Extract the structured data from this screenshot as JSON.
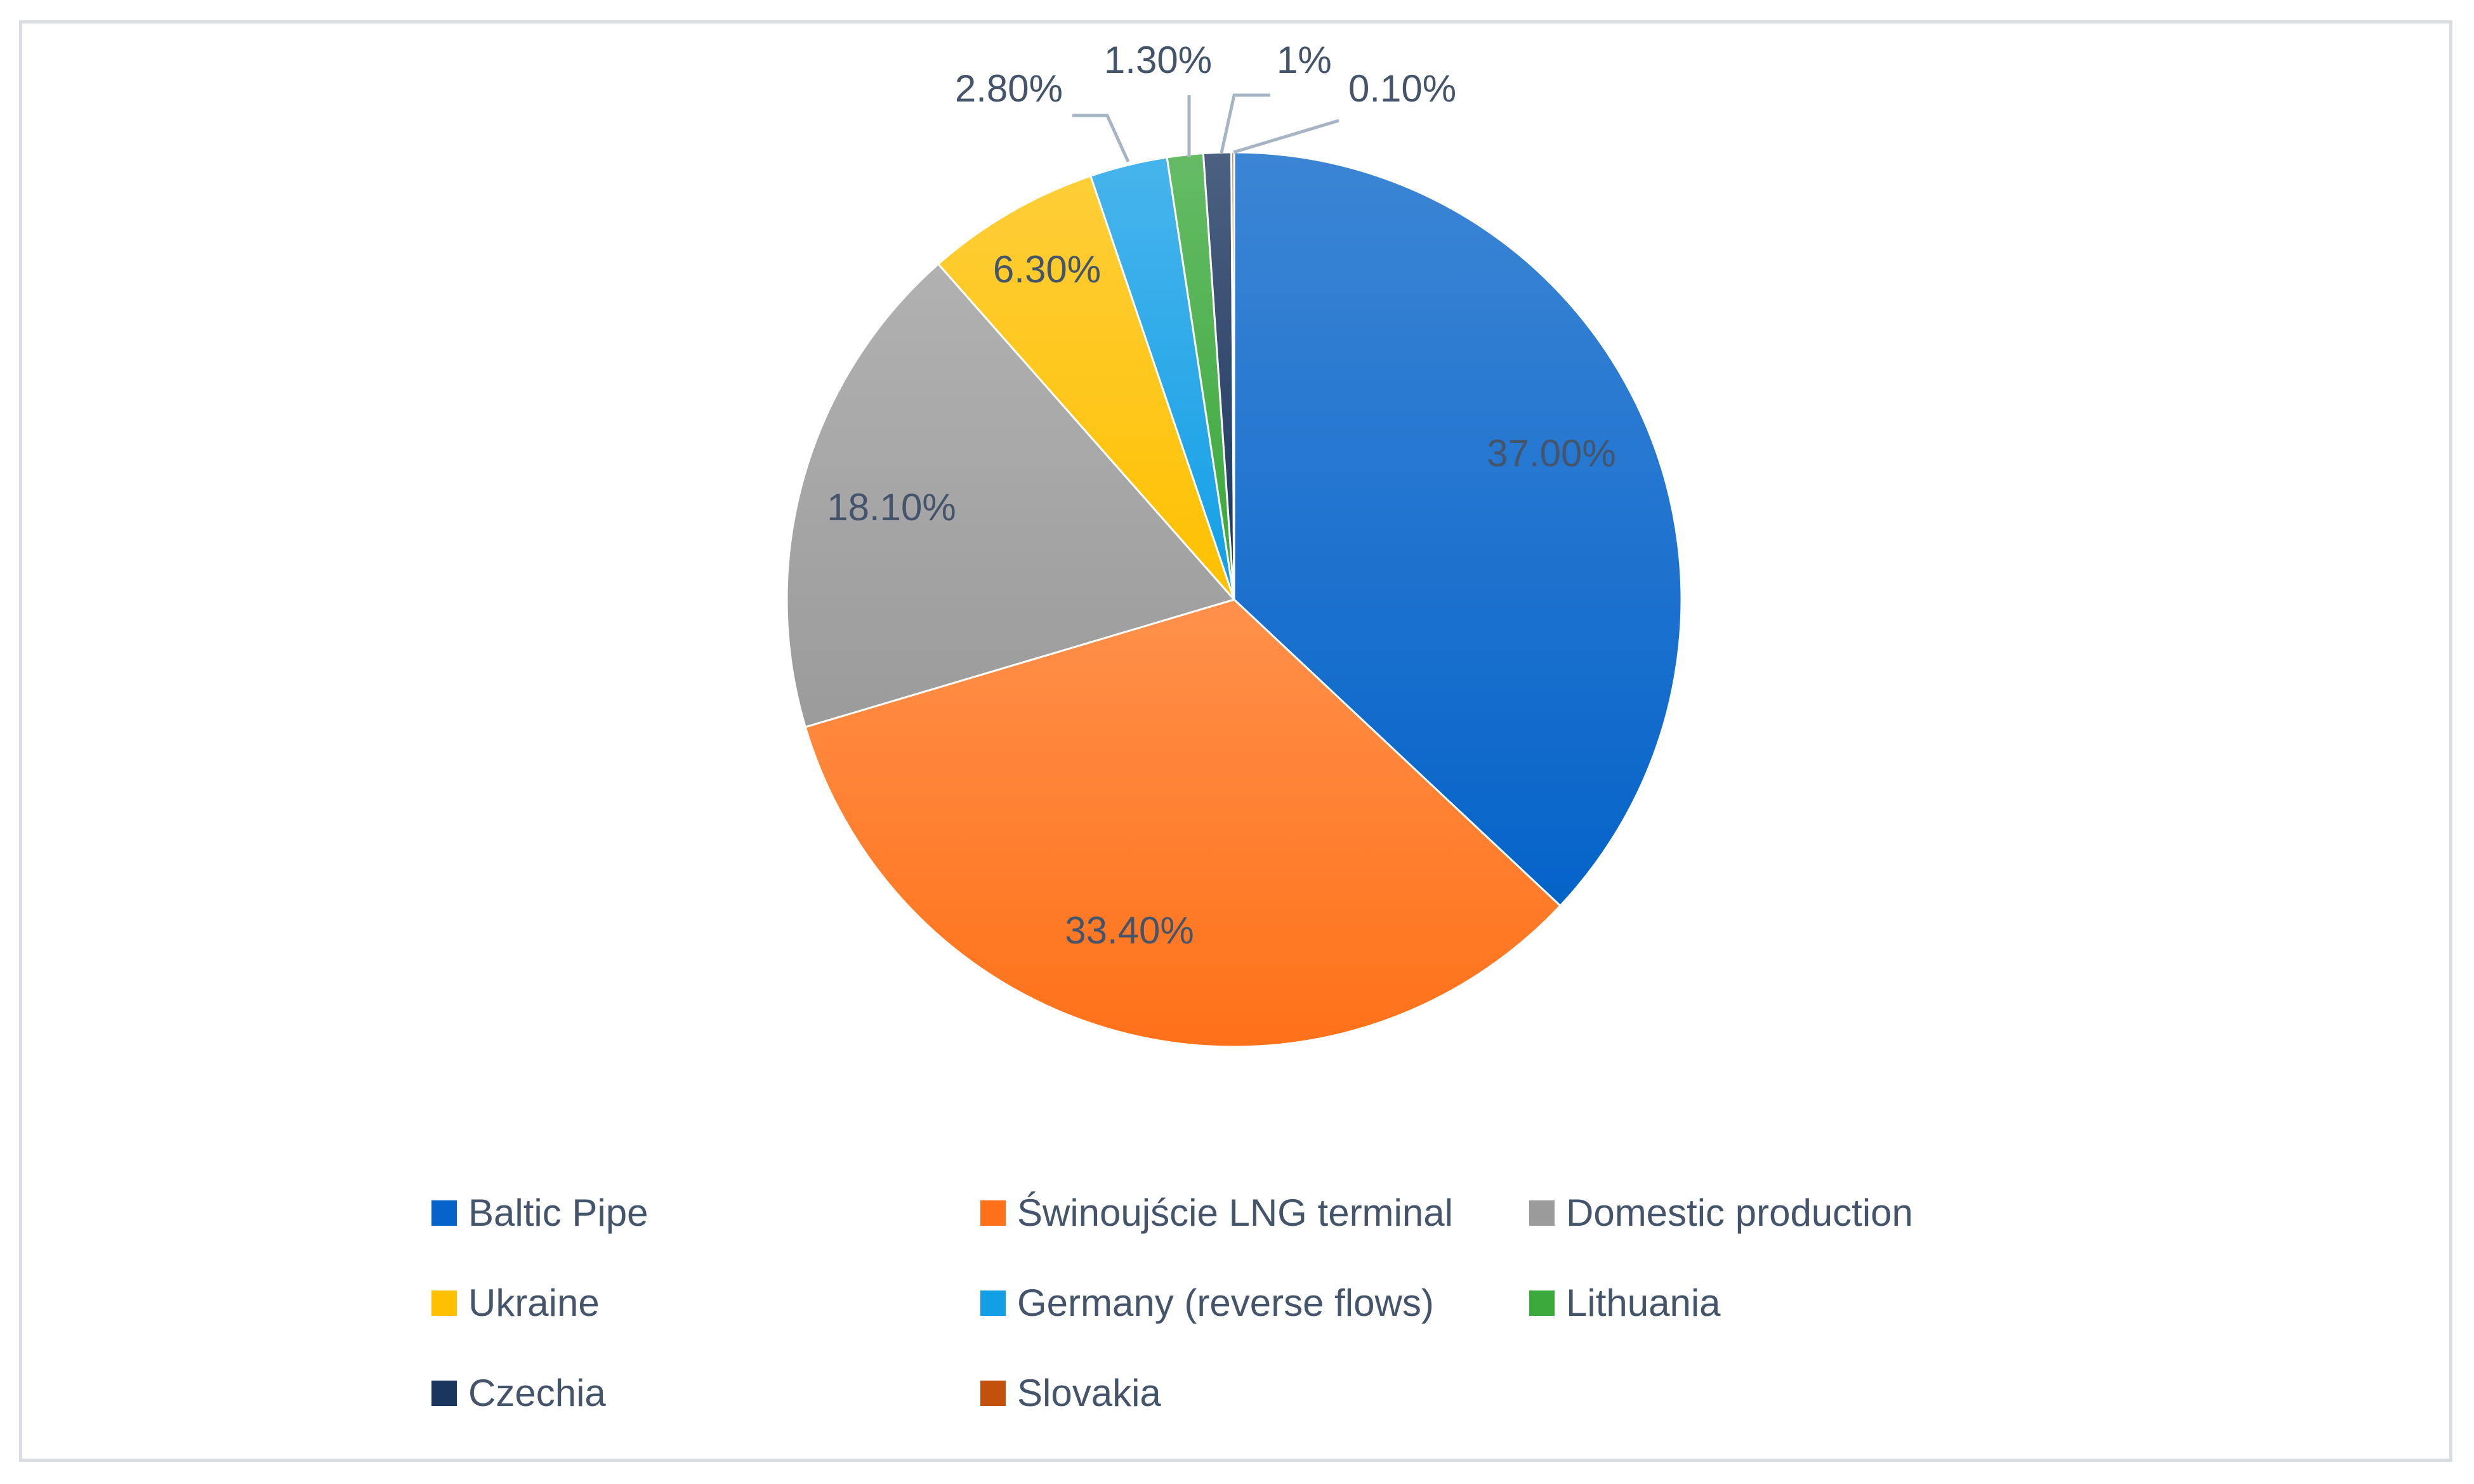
{
  "chart_data": {
    "type": "pie",
    "title": "",
    "categories": [
      "Baltic Pipe",
      "Świnoujście LNG terminal",
      "Domestic production",
      "Ukraine",
      "Germany (reverse flows)",
      "Lithuania",
      "Czechia",
      "Slovakia"
    ],
    "values": [
      37.0,
      33.4,
      18.1,
      6.3,
      2.8,
      1.3,
      1.0,
      0.1
    ],
    "data_labels": [
      "37.00%",
      "33.40%",
      "18.10%",
      "6.30%",
      "2.80%",
      "1.30%",
      "1%",
      "0.10%"
    ],
    "colors": [
      "#0563c9",
      "#ff7118",
      "#9b9b9b",
      "#fec000",
      "#139fe6",
      "#3aa83a",
      "#1a355e",
      "#c3500c"
    ],
    "legend_position": "bottom",
    "start_angle": "top, clockwise"
  }
}
